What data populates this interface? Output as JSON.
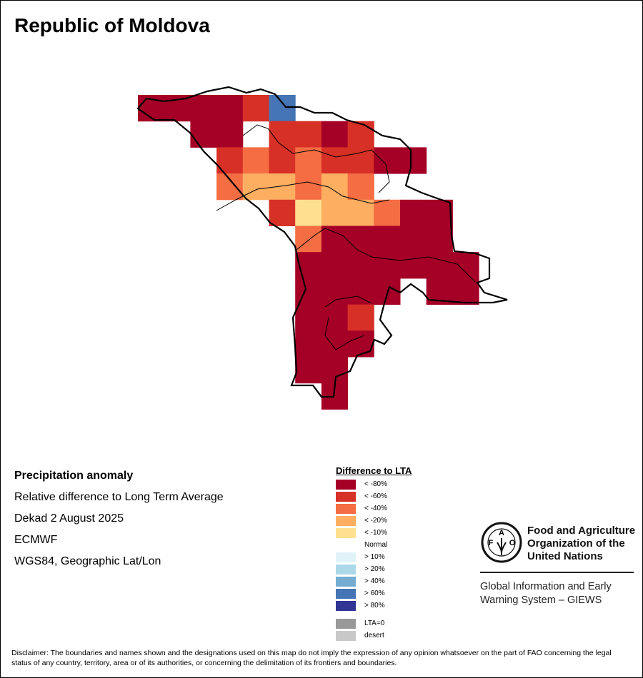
{
  "title": "Republic of Moldova",
  "info": {
    "heading": "Precipitation anomaly",
    "line1": "Relative difference to Long Term Average",
    "line2": "Dekad 2 August 2025",
    "line3": "ECMWF",
    "line4": "WGS84, Geographic Lat/Lon"
  },
  "legend": {
    "title": "Difference to LTA",
    "items": [
      {
        "label": "< -80%",
        "color": "#a50026"
      },
      {
        "label": "< -60%",
        "color": "#d73027"
      },
      {
        "label": "< -40%",
        "color": "#f46d43"
      },
      {
        "label": "< -20%",
        "color": "#fdae61"
      },
      {
        "label": "< -10%",
        "color": "#fee090"
      },
      {
        "label": "Normal",
        "color": "#ffffff"
      },
      {
        "label": "> 10%",
        "color": "#e0f3f8"
      },
      {
        "label": "> 20%",
        "color": "#abd9e9"
      },
      {
        "label": "> 40%",
        "color": "#74add1"
      },
      {
        "label": "> 60%",
        "color": "#4575b4"
      },
      {
        "label": "> 80%",
        "color": "#313695"
      }
    ],
    "extra": [
      {
        "label": "LTA=0",
        "color": "#999999"
      },
      {
        "label": "desert",
        "color": "#c8c8c8"
      }
    ]
  },
  "grid": {
    "classes": {
      "D": "< -80%",
      "R": "< -60%",
      "O": "< -40%",
      "L": "< -20%",
      "Y": "< -10%",
      "B": "> 60%",
      ".": "Normal"
    },
    "rows": [
      "DDDDRB........",
      "..DD.RRDR.....",
      "...RORORRDD...",
      "...OLLOLO.....",
      ".....RYLLODD..",
      "......ODDDDD..",
      "......DDDDDDD.",
      "......DDDD.DD.",
      "......DDR.....",
      "......DDD.....",
      "......DD......",
      ".......D......"
    ]
  },
  "org": {
    "name_line1": "Food and Agriculture",
    "name_line2": "Organization of the",
    "name_line3": "United Nations",
    "system_line1": "Global Information and Early",
    "system_line2": "Warning System – GIEWS",
    "logo_text": "FAO FIAT PANIS"
  },
  "disclaimer": "Disclaimer: The boundaries and names shown and the designations used on this map do not imply the expression of any opinion whatsoever on the part of FAO concerning the legal status of any country, territory, area or of its authorities, or concerning the delimitation of its frontiers and boundaries."
}
